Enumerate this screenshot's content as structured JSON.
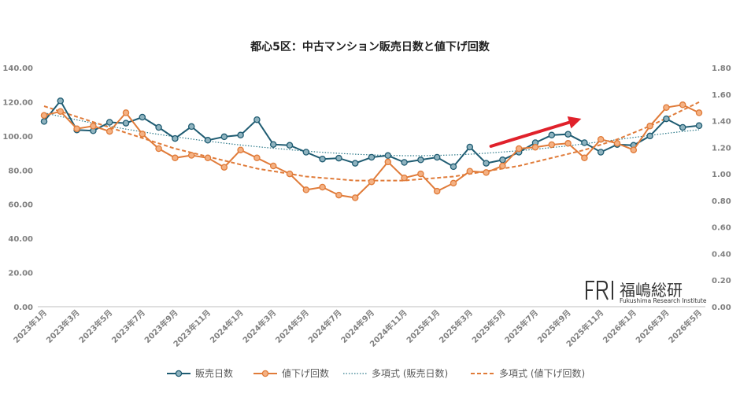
{
  "chart_data": {
    "type": "line",
    "title": "都心5区：中古マンション販売日数と値下げ回数",
    "categories": [
      "2023年1月",
      "2023年2月",
      "2023年3月",
      "2023年4月",
      "2023年5月",
      "2023年6月",
      "2023年7月",
      "2023年8月",
      "2023年9月",
      "2023年10月",
      "2023年11月",
      "2023年12月",
      "2024年1月",
      "2024年2月",
      "2024年3月",
      "2024年4月",
      "2024年5月",
      "2024年6月",
      "2024年7月",
      "2024年8月",
      "2024年9月",
      "2024年10月",
      "2024年11月",
      "2024年12月",
      "2025年1月",
      "2025年2月",
      "2025年3月",
      "2025年4月",
      "2025年5月",
      "2025年6月",
      "2025年7月",
      "2025年8月",
      "2025年9月",
      "2025年10月",
      "2025年11月",
      "2025年12月",
      "2026年1月",
      "2026年2月",
      "2026年3月",
      "2026年4月",
      "2026年5月"
    ],
    "x_tick_labels": [
      "2023年1月",
      "2023年3月",
      "2023年5月",
      "2023年7月",
      "2023年9月",
      "2023年11月",
      "2024年1月",
      "2024年3月",
      "2024年5月",
      "2024年7月",
      "2024年9月",
      "2024年11月",
      "2025年1月",
      "2025年3月",
      "2025年5月",
      "2025年7月",
      "2025年9月",
      "2025年11月",
      "2026年1月",
      "2026年3月",
      "2026年5月"
    ],
    "y_left": {
      "ylim": [
        0,
        140
      ],
      "ticks": [
        "0.00",
        "20.00",
        "40.00",
        "60.00",
        "80.00",
        "100.00",
        "120.00",
        "140.00"
      ]
    },
    "y_right": {
      "ylim": [
        0,
        1.8
      ],
      "ticks": [
        "0.00",
        "0.20",
        "0.40",
        "0.60",
        "0.80",
        "1.00",
        "1.20",
        "1.40",
        "1.60",
        "1.80"
      ]
    },
    "series": [
      {
        "name": "販売日数",
        "axis": "left",
        "color": "#1f5c72",
        "marker_fill": "#8fb3bf",
        "values": [
          108.5,
          120.5,
          103.5,
          103,
          108,
          107.5,
          111,
          105,
          98.5,
          105.5,
          97.5,
          99.5,
          100.5,
          109.5,
          95,
          94.5,
          90.5,
          86.5,
          87,
          84,
          87.5,
          88.5,
          84.5,
          86,
          87.5,
          82,
          93.5,
          84,
          86,
          90.5,
          96,
          100.5,
          101,
          96,
          90.5,
          95,
          94.5,
          100,
          110,
          105,
          106
        ]
      },
      {
        "name": "値下げ回数",
        "axis": "right",
        "color": "#e07b39",
        "marker_fill": "#f4b183",
        "values": [
          1.44,
          1.47,
          1.34,
          1.36,
          1.32,
          1.46,
          1.3,
          1.19,
          1.12,
          1.14,
          1.12,
          1.05,
          1.18,
          1.12,
          1.06,
          1.0,
          0.88,
          0.9,
          0.84,
          0.82,
          0.94,
          1.09,
          0.97,
          1.0,
          0.87,
          0.93,
          1.02,
          1.01,
          1.06,
          1.19,
          1.2,
          1.22,
          1.23,
          1.12,
          1.26,
          1.23,
          1.18,
          1.36,
          1.5,
          1.52,
          1.46
        ]
      },
      {
        "name": "多項式 (販売日数)",
        "axis": "left",
        "kind": "trend",
        "color": "#2e7a8a",
        "values": [
          113.5,
          111.4,
          109.4,
          107.5,
          105.7,
          104.0,
          102.4,
          100.9,
          99.5,
          98.2,
          96.9,
          95.8,
          94.7,
          93.7,
          92.8,
          91.9,
          91.1,
          90.4,
          89.8,
          89.3,
          88.9,
          88.6,
          88.4,
          88.4,
          88.6,
          88.9,
          89.3,
          89.9,
          90.6,
          91.3,
          92.2,
          93.2,
          94.2,
          95.4,
          96.6,
          97.8,
          99.1,
          100.3,
          101.5,
          102.6,
          103.6
        ]
      },
      {
        "name": "多項式 (値下げ回数)",
        "axis": "right",
        "kind": "trend",
        "color": "#e07b39",
        "values": [
          1.51,
          1.47,
          1.43,
          1.39,
          1.35,
          1.31,
          1.27,
          1.23,
          1.19,
          1.16,
          1.13,
          1.1,
          1.07,
          1.04,
          1.02,
          1.0,
          0.98,
          0.97,
          0.96,
          0.95,
          0.95,
          0.95,
          0.95,
          0.96,
          0.97,
          0.98,
          1.0,
          1.02,
          1.04,
          1.06,
          1.09,
          1.12,
          1.15,
          1.18,
          1.22,
          1.26,
          1.31,
          1.36,
          1.42,
          1.48,
          1.54
        ]
      }
    ],
    "legend_position": "bottom",
    "grid": false,
    "annotation_arrow": {
      "from_category": "2025年4月",
      "to_category": "2025年10月",
      "color": "#e0212b"
    }
  },
  "logo": {
    "mark": "FRI",
    "name": "福嶋総研",
    "subtitle": "Fukushima Research Institute"
  }
}
